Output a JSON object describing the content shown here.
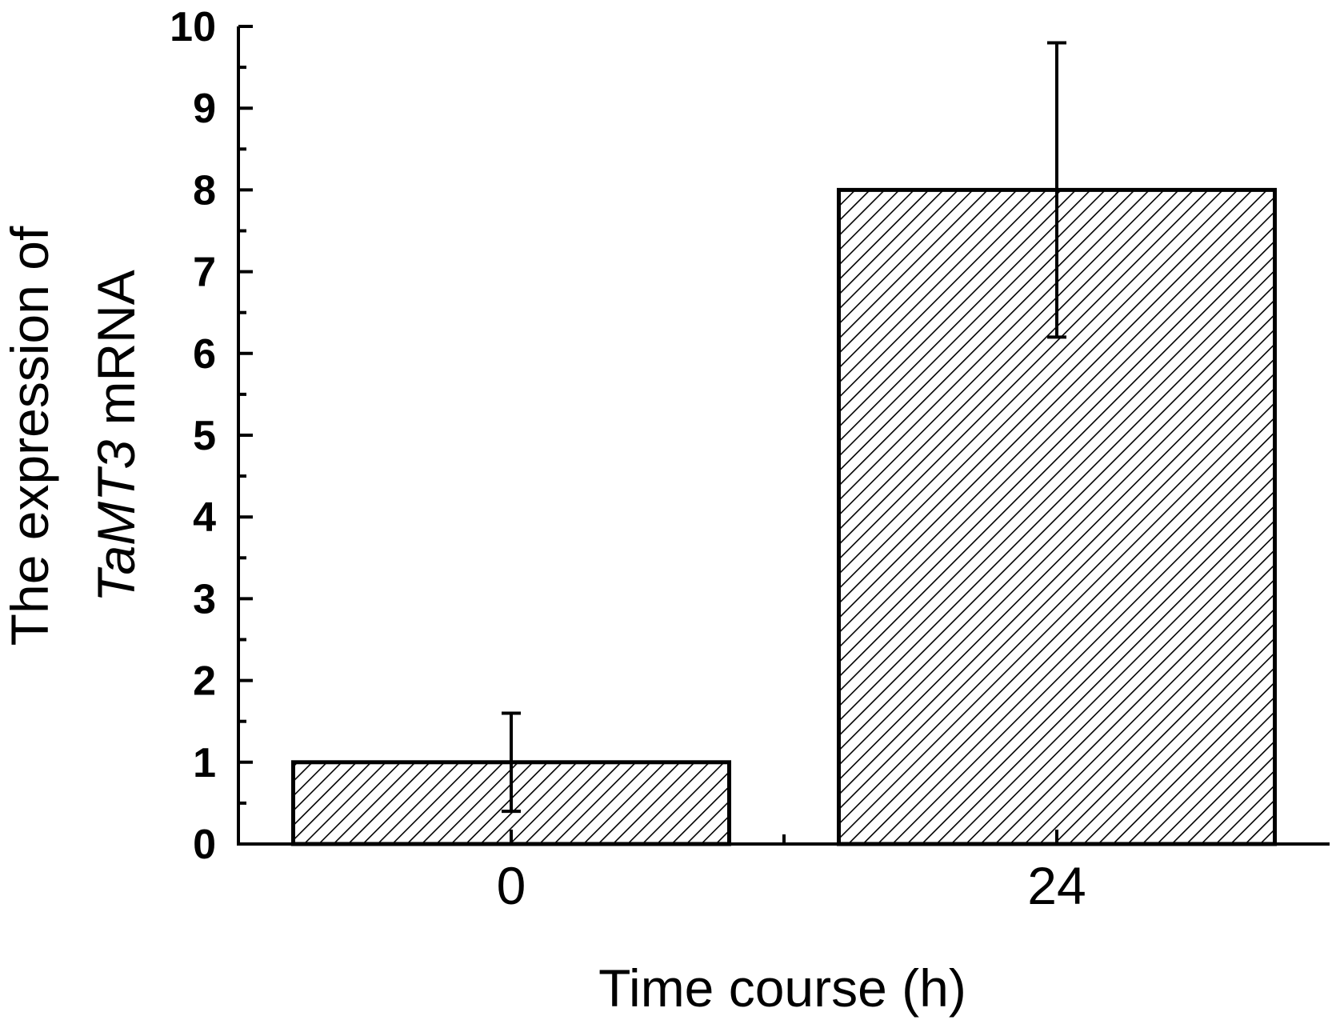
{
  "chart_data": {
    "type": "bar",
    "categories": [
      "0",
      "24"
    ],
    "values": [
      1.0,
      8.0
    ],
    "errors": [
      0.6,
      1.8
    ],
    "ylim": [
      0,
      10
    ],
    "yticks": [
      "0",
      "1",
      "2",
      "3",
      "4",
      "5",
      "6",
      "7",
      "8",
      "9",
      "10"
    ],
    "xlabel": "Time course (h)",
    "ylabel_line1": "The expression of",
    "ylabel_gene": "TaMT3",
    "ylabel_suffix": " mRNA",
    "grid": false,
    "bar_fill": "diagonal-hatch",
    "colors": {
      "axis": "#000000",
      "bar_stroke": "#000000",
      "hatch": "#000000",
      "background": "#ffffff"
    }
  }
}
